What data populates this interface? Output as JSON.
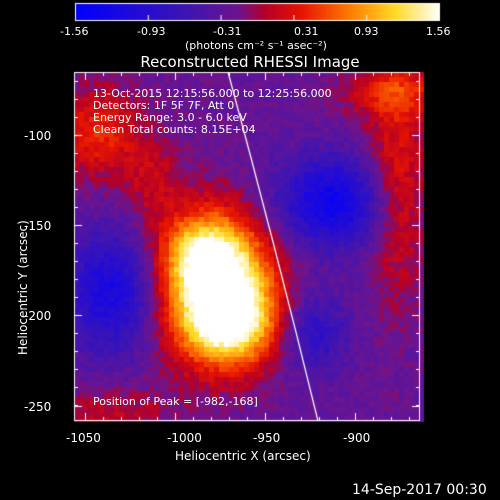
{
  "colorbar": {
    "ticks": [
      "-1.56",
      "-0.93",
      "-0.31",
      "0.31",
      "0.93",
      "1.56"
    ],
    "units": "(photons cm⁻² s⁻¹ asec⁻²)"
  },
  "title": "Reconstructed RHESSI Image",
  "info": {
    "time": "13-Oct-2015 12:15:56.000 to 12:25:56.000",
    "detectors": "Detectors: 1F 5F 7F, Att 0",
    "energy": "Energy Range: 3.0 - 6.0 keV",
    "clean": "Clean     Total counts: 8.15E+04",
    "peak": "Position of Peak = [-982,-168]"
  },
  "axes": {
    "xlabel": "Heliocentric X (arcsec)",
    "ylabel": "Heliocentric Y (arcsec)",
    "xticks": [
      "-1050",
      "-1000",
      "-950",
      "-900"
    ],
    "yticks": [
      "-100",
      "-150",
      "-200",
      "-250"
    ]
  },
  "footer": "14-Sep-2017 00:30",
  "colors": {
    "background": "#000000",
    "frame": "#ffffff",
    "limb_line": "#ffffff"
  }
}
